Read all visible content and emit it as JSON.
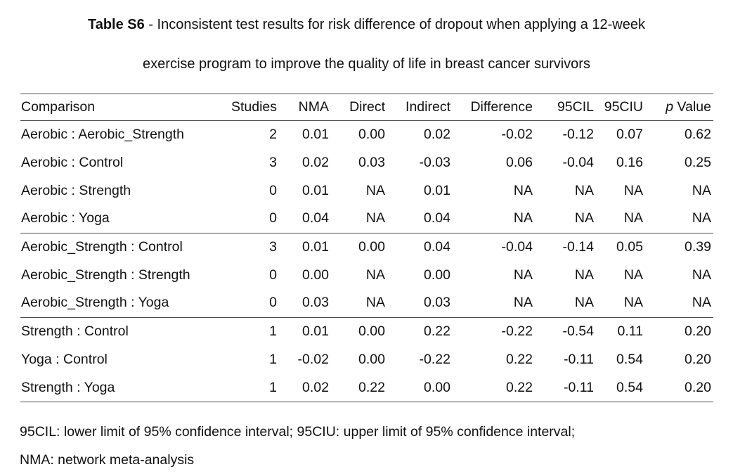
{
  "title": {
    "label_bold": "Table S6",
    "line1_rest": " - Inconsistent test results for risk difference of dropout when applying a 12-week",
    "line2": "exercise program to improve the quality of life in breast cancer survivors"
  },
  "table": {
    "columns": [
      "Comparison",
      "Studies",
      "NMA",
      "Direct",
      "Indirect",
      "Difference",
      "95CIL",
      "95CIU"
    ],
    "p_header": {
      "italic": "p",
      "rest": " Value"
    },
    "rows": [
      {
        "cells": [
          "Aerobic : Aerobic_Strength",
          "2",
          "0.01",
          "0.00",
          "0.02",
          "-0.02",
          "-0.12",
          "0.07",
          "0.62"
        ],
        "group_end": false
      },
      {
        "cells": [
          "Aerobic : Control",
          "3",
          "0.02",
          "0.03",
          "-0.03",
          "0.06",
          "-0.04",
          "0.16",
          "0.25"
        ],
        "group_end": false
      },
      {
        "cells": [
          "Aerobic : Strength",
          "0",
          "0.01",
          "NA",
          "0.01",
          "NA",
          "NA",
          "NA",
          "NA"
        ],
        "group_end": false
      },
      {
        "cells": [
          "Aerobic : Yoga",
          "0",
          "0.04",
          "NA",
          "0.04",
          "NA",
          "NA",
          "NA",
          "NA"
        ],
        "group_end": true
      },
      {
        "cells": [
          "Aerobic_Strength : Control",
          "3",
          "0.01",
          "0.00",
          "0.04",
          "-0.04",
          "-0.14",
          "0.05",
          "0.39"
        ],
        "group_end": false
      },
      {
        "cells": [
          "Aerobic_Strength : Strength",
          "0",
          "0.00",
          "NA",
          "0.00",
          "NA",
          "NA",
          "NA",
          "NA"
        ],
        "group_end": false
      },
      {
        "cells": [
          "Aerobic_Strength : Yoga",
          "0",
          "0.03",
          "NA",
          "0.03",
          "NA",
          "NA",
          "NA",
          "NA"
        ],
        "group_end": true
      },
      {
        "cells": [
          "Strength : Control",
          "1",
          "0.01",
          "0.00",
          "0.22",
          "-0.22",
          "-0.54",
          "0.11",
          "0.20"
        ],
        "group_end": false
      },
      {
        "cells": [
          "Yoga : Control",
          "1",
          "-0.02",
          "0.00",
          "-0.22",
          "0.22",
          "-0.11",
          "0.54",
          "0.20"
        ],
        "group_end": false
      },
      {
        "cells": [
          "Strength : Yoga",
          "1",
          "0.02",
          "0.22",
          "0.00",
          "0.22",
          "-0.11",
          "0.54",
          "0.20"
        ],
        "group_end": false
      }
    ]
  },
  "footnotes": {
    "line1": "95CIL: lower limit of 95% confidence interval; 95CIU: upper limit of 95% confidence interval;",
    "line2": "NMA: network meta-analysis"
  }
}
